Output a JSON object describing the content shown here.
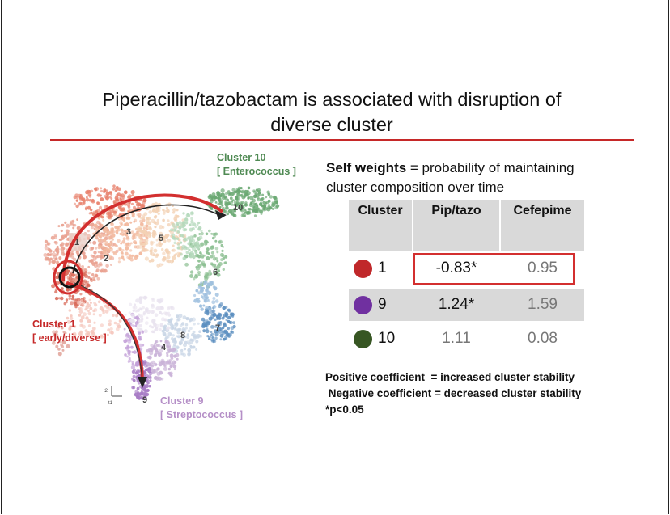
{
  "slide": {
    "title_line1": "Piperacillin/tazobactam is associated with disruption of",
    "title_line2": "diverse cluster"
  },
  "umap": {
    "cluster10_label": "Cluster 10",
    "cluster10_sub": "[ Enterococcus ]",
    "cluster1_label": "Cluster 1",
    "cluster1_sub": "[ early/diverse ]",
    "cluster9_label": "Cluster 9",
    "cluster9_sub": "[ Streptococcus ]",
    "cluster_numbers": [
      "1",
      "2",
      "3",
      "4",
      "5",
      "6",
      "7",
      "8",
      "9",
      "10"
    ],
    "axis_label_x": "t1",
    "axis_label_y": "t2",
    "colors": {
      "cluster1": "#c62828",
      "cluster9": "#8a4fb0",
      "cluster10": "#2e6b33",
      "arrow_red": "#d32f2f"
    }
  },
  "self_weights": {
    "bold": "Self weights",
    "rest": " = probability of maintaining",
    "line2": "cluster composition over time"
  },
  "table": {
    "headers": [
      "Cluster",
      "Pip/tazo",
      "Cefepime"
    ],
    "rows": [
      {
        "cluster": "1",
        "dot_color": "#c0282a",
        "pip": "-0.83*",
        "cef": "0.95"
      },
      {
        "cluster": "9",
        "dot_color": "#7030a0",
        "pip": "1.24*",
        "cef": "1.59"
      },
      {
        "cluster": "10",
        "dot_color": "#375623",
        "pip": "1.11",
        "cef": "0.08"
      }
    ]
  },
  "notes": {
    "line1": "Positive coefficient  = increased cluster stability",
    "line2": " Negative coefficient = decreased cluster stability",
    "line3": "*p<0.05"
  }
}
